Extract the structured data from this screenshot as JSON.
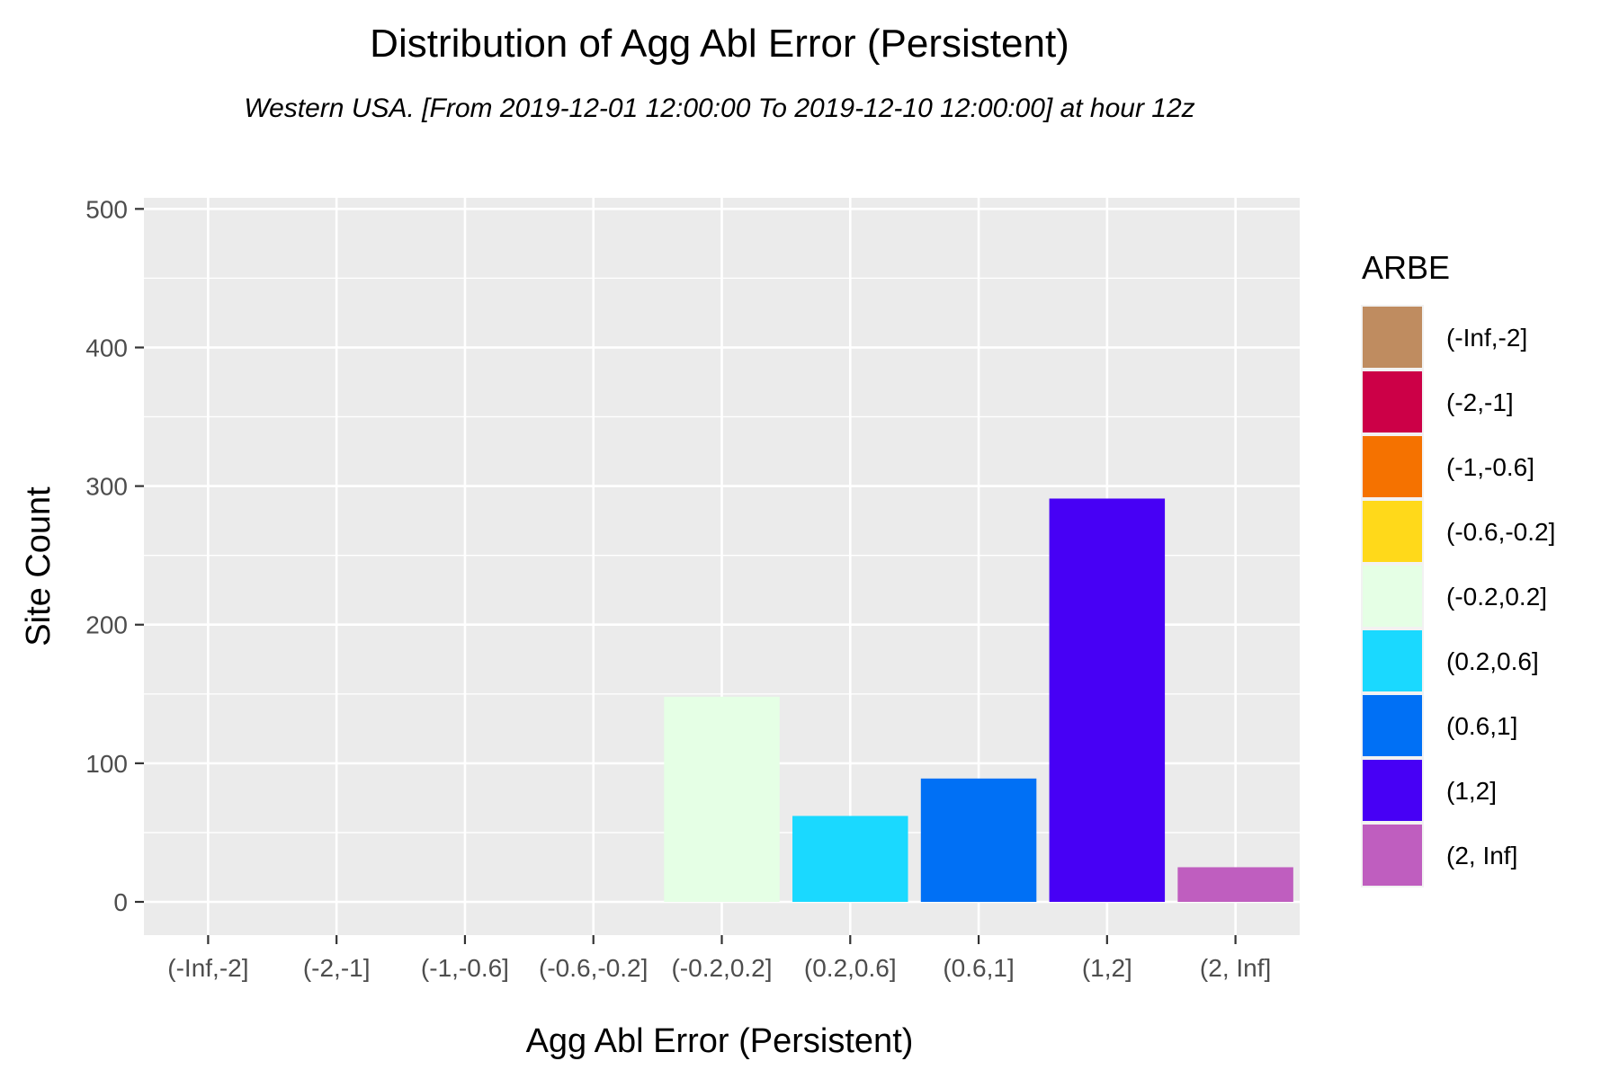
{
  "chart_data": {
    "type": "bar",
    "title": "Distribution of Agg Abl Error (Persistent)",
    "subtitle": "Western USA.  [From 2019-12-01 12:00:00 To 2019-12-10 12:00:00] at hour 12z",
    "xlabel": "Agg Abl Error (Persistent)",
    "ylabel": "Site Count",
    "categories": [
      "(-Inf,-2]",
      "(-2,-1]",
      "(-1,-0.6]",
      "(-0.6,-0.2]",
      "(-0.2,0.2]",
      "(0.2,0.6]",
      "(0.6,1]",
      "(1,2]",
      "(2, Inf]"
    ],
    "values": [
      0,
      0,
      0,
      0,
      148,
      62,
      89,
      291,
      25
    ],
    "colors": [
      "#bf8c60",
      "#cc0047",
      "#f57200",
      "#ffd91a",
      "#e5ffe5",
      "#1ad9ff",
      "#0070f5",
      "#4700f5",
      "#bf5ebf"
    ],
    "ylim": [
      -24,
      508
    ],
    "yticks": [
      0,
      100,
      200,
      300,
      400,
      500
    ],
    "grid": true,
    "legend": {
      "title": "ARBE",
      "position": "right",
      "labels": [
        "(-Inf,-2]",
        "(-2,-1]",
        "(-1,-0.6]",
        "(-0.6,-0.2]",
        "(-0.2,0.2]",
        "(0.2,0.6]",
        "(0.6,1]",
        "(1,2]",
        "(2, Inf]"
      ]
    }
  }
}
